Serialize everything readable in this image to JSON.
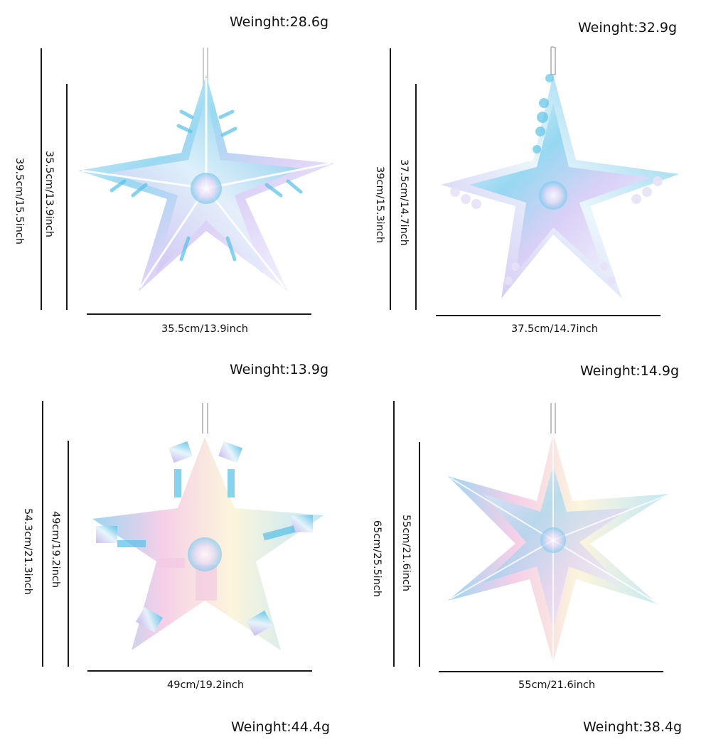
{
  "products": [
    {
      "weight": "Weinght:28.6g",
      "height_outer": "39.5cm/15.5inch",
      "height_inner": "35.5cm/13.9inch",
      "width": "35.5cm/13.9inch",
      "style": "five-point-spiky-star"
    },
    {
      "weight": "Weinght:32.9g",
      "height_outer": "39cm/15.3inch",
      "height_inner": "37.5cm/14.7inch",
      "width": "37.5cm/14.7inch",
      "style": "five-point-scalloped-star"
    },
    {
      "weight": "Weinght:13.9g",
      "height_outer": "54.3cm/21.3inch",
      "height_inner": "49cm/19.2inch",
      "width": "49cm/19.2inch",
      "style": "snowflake-star"
    },
    {
      "weight": "Weinght:14.9g",
      "height_outer": "65cm/25.5inch",
      "height_inner": "55cm/21.6inch",
      "width": "55cm/21.6inch",
      "style": "six-point-star"
    }
  ],
  "bottom_weights": [
    "Weinght:44.4g",
    "Weinght:38.4g"
  ],
  "colors": {
    "ink": "#111111",
    "iridescent_blue": "#5fc3e8",
    "iridescent_lilac": "#c9b6f0",
    "iridescent_pink": "#f3c6e4",
    "iridescent_white": "#eef6fb"
  }
}
